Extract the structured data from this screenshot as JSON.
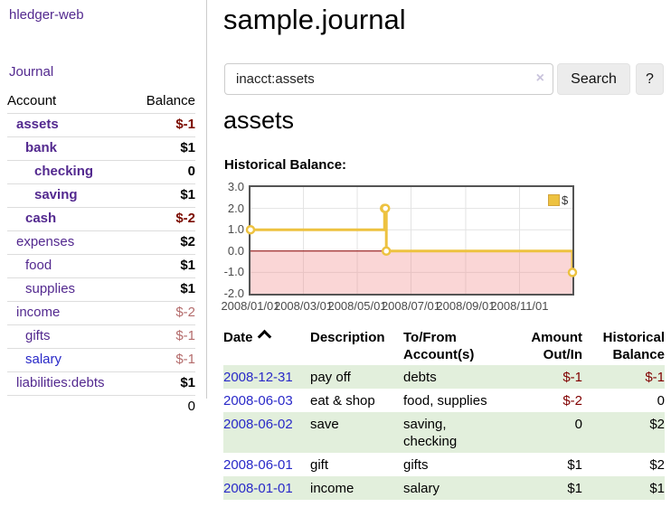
{
  "app": {
    "brand": "hledger-web",
    "nav_journal": "Journal"
  },
  "sidebar": {
    "columns": {
      "account": "Account",
      "balance": "Balance"
    },
    "accounts": [
      {
        "name": "assets",
        "depth": 0,
        "bold": true,
        "balance": "$-1",
        "negative": true,
        "blue": false
      },
      {
        "name": "bank",
        "depth": 1,
        "bold": true,
        "balance": "$1",
        "negative": false,
        "blue": false
      },
      {
        "name": "checking",
        "depth": 2,
        "bold": true,
        "balance": "0",
        "negative": false,
        "blue": false
      },
      {
        "name": "saving",
        "depth": 2,
        "bold": true,
        "balance": "$1",
        "negative": false,
        "blue": false
      },
      {
        "name": "cash",
        "depth": 1,
        "bold": true,
        "balance": "$-2",
        "negative": true,
        "blue": false
      },
      {
        "name": "expenses",
        "depth": 0,
        "bold": false,
        "balance": "$2",
        "negative": false,
        "blue": false
      },
      {
        "name": "food",
        "depth": 1,
        "bold": false,
        "balance": "$1",
        "negative": false,
        "blue": false
      },
      {
        "name": "supplies",
        "depth": 1,
        "bold": false,
        "balance": "$1",
        "negative": false,
        "blue": false
      },
      {
        "name": "income",
        "depth": 0,
        "bold": false,
        "balance": "$-2",
        "negative": true,
        "blue": false
      },
      {
        "name": "gifts",
        "depth": 1,
        "bold": false,
        "balance": "$-1",
        "negative": true,
        "blue": false
      },
      {
        "name": "salary",
        "depth": 1,
        "bold": false,
        "balance": "$-1",
        "negative": true,
        "blue": true
      },
      {
        "name": "liabilities:debts",
        "depth": 0,
        "bold": false,
        "balance": "$1",
        "negative": false,
        "blue": false
      }
    ],
    "total": "0"
  },
  "header": {
    "title": "sample.journal"
  },
  "search": {
    "value": "inacct:assets",
    "clear_icon": "×",
    "button": "Search",
    "help_button": "?"
  },
  "account_page": {
    "title": "assets",
    "chart_label": "Historical Balance:"
  },
  "chart_data": {
    "type": "line",
    "title": "Historical Balance",
    "legend": "$",
    "legend_position": "top-right",
    "grid": true,
    "ylim": [
      -2,
      3
    ],
    "x_domain": [
      "2008-01-01",
      "2008-12-31"
    ],
    "series": [
      {
        "name": "$",
        "step": true,
        "points": [
          {
            "date": "2008-01-01",
            "value": 1
          },
          {
            "date": "2008-06-01",
            "value": 2
          },
          {
            "date": "2008-06-02",
            "value": 2
          },
          {
            "date": "2008-06-03",
            "value": 0
          },
          {
            "date": "2008-12-31",
            "value": -1
          }
        ]
      }
    ],
    "x_ticks": [
      {
        "date": "2008-01-01",
        "label": "2008/01/01"
      },
      {
        "date": "2008-03-01",
        "label": "2008/03/01"
      },
      {
        "date": "2008-05-01",
        "label": "2008/05/01"
      },
      {
        "date": "2008-07-01",
        "label": "2008/07/01"
      },
      {
        "date": "2008-09-01",
        "label": "2008/09/01"
      },
      {
        "date": "2008-11-01",
        "label": "2008/11/01"
      }
    ],
    "y_ticks": [
      "3.0",
      "2.0",
      "1.0",
      "0.0",
      "-1.0",
      "-2.0"
    ],
    "colors": {
      "line": "#edc240",
      "marker_fill": "#ffffff",
      "negative_fill": "rgba(242,148,148,0.38)",
      "zero_line": "#8b0000",
      "grid": "#e3e3e3",
      "border": "#545454"
    }
  },
  "register": {
    "columns": [
      {
        "key": "date",
        "line1": "Date",
        "line2": "",
        "numeric": false,
        "sorted": true
      },
      {
        "key": "description",
        "line1": "Description",
        "line2": "",
        "numeric": false,
        "sorted": false
      },
      {
        "key": "accounts",
        "line1": "To/From",
        "line2": "Account(s)",
        "numeric": false,
        "sorted": false
      },
      {
        "key": "amount",
        "line1": "Amount",
        "line2": "Out/In",
        "numeric": true,
        "sorted": false
      },
      {
        "key": "balance",
        "line1": "Historical",
        "line2": "Balance",
        "numeric": true,
        "sorted": false
      }
    ],
    "rows": [
      {
        "date": "2008-12-31",
        "description": "pay off",
        "accounts": "debts",
        "amount": "$-1",
        "amount_negative": true,
        "balance": "$-1",
        "balance_negative": true
      },
      {
        "date": "2008-06-03",
        "description": "eat & shop",
        "accounts": "food, supplies",
        "amount": "$-2",
        "amount_negative": true,
        "balance": "0",
        "balance_negative": false
      },
      {
        "date": "2008-06-02",
        "description": "save",
        "accounts": "saving,\nchecking",
        "amount": "0",
        "amount_negative": false,
        "balance": "$2",
        "balance_negative": false
      },
      {
        "date": "2008-06-01",
        "description": "gift",
        "accounts": "gifts",
        "amount": "$1",
        "amount_negative": false,
        "balance": "$2",
        "balance_negative": false
      },
      {
        "date": "2008-01-01",
        "description": "income",
        "accounts": "salary",
        "amount": "$1",
        "amount_negative": false,
        "balance": "$1",
        "balance_negative": false
      }
    ]
  },
  "colors": {
    "link_purple": "#53298f",
    "link_blue": "#2929c8",
    "negative_dark": "#7b0c00",
    "negative_muted": "#b46c6c",
    "register_negative": "#800000",
    "row_stripe_green": "#e2efdc"
  }
}
